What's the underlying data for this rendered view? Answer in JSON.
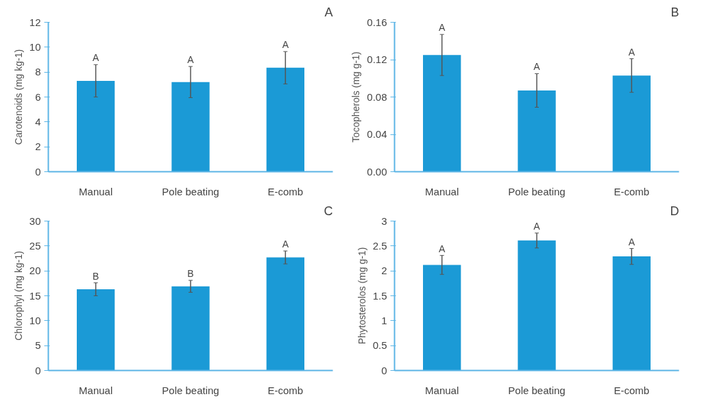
{
  "chart_data": [
    {
      "type": "bar",
      "title": "A",
      "ylabel": "Carotenoids (mg kg-1)",
      "categories": [
        "Manual",
        "Pole beating",
        "E-comb"
      ],
      "values": [
        7.3,
        7.2,
        8.35
      ],
      "errors": [
        1.3,
        1.25,
        1.3
      ],
      "color": "#1b9ad6",
      "ylim": [
        0,
        12
      ],
      "yticks": [
        0,
        2,
        4,
        6,
        8,
        10,
        12
      ],
      "grid": false,
      "annotations": [
        {
          "text": "A",
          "x": "Manual",
          "y": 8.6
        },
        {
          "text": "A",
          "x": "Pole beating",
          "y": 8.45
        },
        {
          "text": "A",
          "x": "E-comb",
          "y": 9.65
        }
      ]
    },
    {
      "type": "bar",
      "title": "B",
      "ylabel": "Tocopherols (mg g-1)",
      "categories": [
        "Manual",
        "Pole beating",
        "E-comb"
      ],
      "values": [
        0.125,
        0.087,
        0.103
      ],
      "errors": [
        0.022,
        0.018,
        0.018
      ],
      "color": "#1b9ad6",
      "ylim": [
        0,
        0.16
      ],
      "yticks": [
        {
          "value": 0,
          "label": "0.00"
        },
        {
          "value": 0.04,
          "label": "0.04"
        },
        {
          "value": 0.08,
          "label": "0.08"
        },
        {
          "value": 0.12,
          "label": "0.12"
        },
        {
          "value": 0.16,
          "label": "0.16"
        }
      ],
      "grid": false,
      "annotations": [
        {
          "text": "A",
          "x": "Manual",
          "y": 0.147
        },
        {
          "text": "A",
          "x": "Pole beating",
          "y": 0.105
        },
        {
          "text": "A",
          "x": "E-comb",
          "y": 0.121
        }
      ]
    },
    {
      "type": "bar",
      "title": "C",
      "ylabel": "Chlorophyl (mg kg-1)",
      "categories": [
        "Manual",
        "Pole beating",
        "E-comb"
      ],
      "values": [
        16.3,
        16.9,
        22.7
      ],
      "errors": [
        1.3,
        1.2,
        1.3
      ],
      "color": "#1b9ad6",
      "ylim": [
        0,
        30
      ],
      "yticks": [
        0,
        5,
        10,
        15,
        20,
        25,
        30
      ],
      "grid": false,
      "annotations": [
        {
          "text": "B",
          "x": "Manual",
          "y": 17.6
        },
        {
          "text": "B",
          "x": "Pole beating",
          "y": 18.1
        },
        {
          "text": "A",
          "x": "E-comb",
          "y": 24.0
        }
      ]
    },
    {
      "type": "bar",
      "title": "D",
      "ylabel": "Phytosterolos (mg g-1)",
      "categories": [
        "Manual",
        "Pole beating",
        "E-comb"
      ],
      "values": [
        2.12,
        2.61,
        2.29
      ],
      "errors": [
        0.19,
        0.15,
        0.16
      ],
      "color": "#1b9ad6",
      "ylim": [
        0,
        3
      ],
      "yticks": [
        0,
        0.5,
        1,
        1.5,
        2,
        2.5,
        3
      ],
      "grid": false,
      "annotations": [
        {
          "text": "A",
          "x": "Manual",
          "y": 2.31
        },
        {
          "text": "A",
          "x": "Pole beating",
          "y": 2.76
        },
        {
          "text": "A",
          "x": "E-comb",
          "y": 2.44
        }
      ]
    }
  ]
}
